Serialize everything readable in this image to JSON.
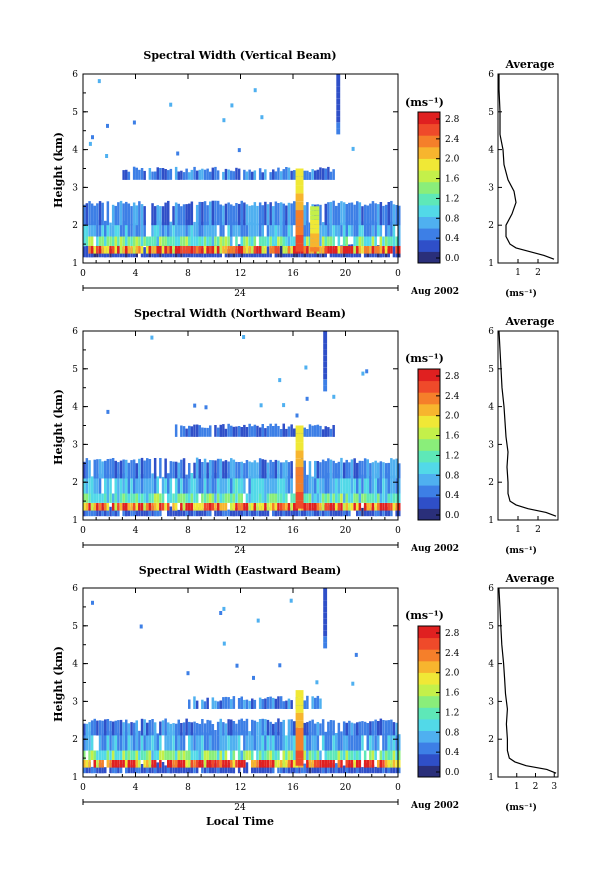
{
  "panels": [
    {
      "title": "Spectral Width (Vertical Beam)",
      "ylabel": "Height (km)",
      "date_label": "Aug 2002",
      "day_label": "24",
      "xticks": [
        "0",
        "4",
        "8",
        "12",
        "16",
        "20",
        "0"
      ],
      "yticks": [
        "1",
        "2",
        "3",
        "4",
        "5",
        "6"
      ],
      "cb_unit": "(ms⁻¹)",
      "cb_ticks": [
        "2.8",
        "2.4",
        "2.0",
        "1.6",
        "1.2",
        "0.8",
        "0.4",
        "0.0"
      ],
      "avg_title": "Average",
      "avg_xticks": [
        "1",
        "2"
      ],
      "avg_xlabel": "(ms⁻¹)"
    },
    {
      "title": "Spectral Width (Northward Beam)",
      "ylabel": "Height (km)",
      "date_label": "Aug 2002",
      "day_label": "24",
      "xticks": [
        "0",
        "4",
        "8",
        "12",
        "16",
        "20",
        "0"
      ],
      "yticks": [
        "1",
        "2",
        "3",
        "4",
        "5",
        "6"
      ],
      "cb_unit": "(ms⁻¹)",
      "cb_ticks": [
        "2.8",
        "2.4",
        "2.0",
        "1.6",
        "1.2",
        "0.8",
        "0.4",
        "0.0"
      ],
      "avg_title": "Average",
      "avg_xticks": [
        "1",
        "2"
      ],
      "avg_xlabel": "(ms⁻¹)"
    },
    {
      "title": "Spectral Width (Eastward Beam)",
      "ylabel": "Height (km)",
      "date_label": "Aug 2002",
      "day_label": "24",
      "xticks": [
        "0",
        "4",
        "8",
        "12",
        "16",
        "20",
        "0"
      ],
      "yticks": [
        "1",
        "2",
        "3",
        "4",
        "5",
        "6"
      ],
      "cb_unit": "(ms⁻¹)",
      "cb_ticks": [
        "2.8",
        "2.4",
        "2.0",
        "1.6",
        "1.2",
        "0.8",
        "0.4",
        "0.0"
      ],
      "avg_title": "Average",
      "avg_xticks": [
        "1",
        "2",
        "3"
      ],
      "avg_xlabel": "(ms⁻¹)",
      "xlabel": "Local Time"
    }
  ],
  "colors": {
    "colormap": [
      "#2a2f7a",
      "#2f4fc8",
      "#3d7fe6",
      "#4fb0f0",
      "#52d9e8",
      "#5ee8b8",
      "#8aee7a",
      "#c4f04a",
      "#f0e836",
      "#f7b52e",
      "#f57f2a",
      "#ef4a2a",
      "#e02020"
    ]
  },
  "chart_data": [
    {
      "type": "heatmap",
      "title": "Spectral Width (Vertical Beam)",
      "xlabel": "",
      "ylabel": "Height (km)",
      "xlim": [
        0,
        24
      ],
      "ylim": [
        1,
        6
      ],
      "zlim": [
        0,
        3
      ],
      "colorbar_label": "(ms⁻¹)",
      "date": "Aug 2002, day 24",
      "layers": [
        {
          "y0": 1.15,
          "y1": 1.35,
          "x0": 0,
          "x1": 24,
          "value": 0.2
        },
        {
          "y0": 1.25,
          "y1": 1.45,
          "x0": 0,
          "x1": 24,
          "value": 2.7
        },
        {
          "y0": 1.45,
          "y1": 1.7,
          "x0": 0,
          "x1": 24,
          "value": 1.3
        },
        {
          "y0": 1.7,
          "y1": 2.0,
          "x0": 0,
          "x1": 24,
          "value": 0.7
        },
        {
          "y0": 2.0,
          "y1": 2.5,
          "x0": 0,
          "x1": 24,
          "value": 0.5
        },
        {
          "y0": 3.2,
          "y1": 3.4,
          "x0": 3,
          "x1": 19,
          "value": 0.5
        }
      ],
      "features": [
        {
          "x0": 16.2,
          "x1": 16.8,
          "y0": 1.3,
          "y1": 3.5,
          "value": 2.8
        },
        {
          "x0": 17.3,
          "x1": 18.0,
          "y0": 1.3,
          "y1": 2.5,
          "value": 2.4
        },
        {
          "x0": 19.3,
          "x1": 19.6,
          "y0": 4.4,
          "y1": 6.0,
          "value": 0.4
        }
      ],
      "average_profile": {
        "xlim": [
          0,
          3
        ],
        "height": [
          1.1,
          1.2,
          1.3,
          1.4,
          1.5,
          1.7,
          2.0,
          2.3,
          2.6,
          2.9,
          3.2,
          3.6,
          4.0,
          4.4,
          5.0,
          5.6,
          6.0
        ],
        "width": [
          2.8,
          2.3,
          1.6,
          0.9,
          0.6,
          0.4,
          0.4,
          0.7,
          0.9,
          0.8,
          0.5,
          0.3,
          0.25,
          0.1,
          0.1,
          0.05,
          0.05
        ]
      }
    },
    {
      "type": "heatmap",
      "title": "Spectral Width (Northward Beam)",
      "xlabel": "",
      "ylabel": "Height (km)",
      "xlim": [
        0,
        24
      ],
      "ylim": [
        1,
        6
      ],
      "zlim": [
        0,
        3
      ],
      "colorbar_label": "(ms⁻¹)",
      "date": "Aug 2002, day 24",
      "layers": [
        {
          "y0": 1.1,
          "y1": 1.25,
          "x0": 0,
          "x1": 24,
          "value": 0.3
        },
        {
          "y0": 1.25,
          "y1": 1.45,
          "x0": 0,
          "x1": 24,
          "value": 2.6
        },
        {
          "y0": 1.45,
          "y1": 1.7,
          "x0": 0,
          "x1": 24,
          "value": 1.2
        },
        {
          "y0": 1.7,
          "y1": 2.1,
          "x0": 0,
          "x1": 24,
          "value": 0.8
        },
        {
          "y0": 2.1,
          "y1": 2.5,
          "x0": 0,
          "x1": 24,
          "value": 0.5
        },
        {
          "y0": 3.2,
          "y1": 3.4,
          "x0": 7,
          "x1": 19,
          "value": 0.4
        }
      ],
      "features": [
        {
          "x0": 16.2,
          "x1": 16.8,
          "y0": 1.3,
          "y1": 3.5,
          "value": 2.8
        },
        {
          "x0": 18.3,
          "x1": 18.6,
          "y0": 4.4,
          "y1": 6.0,
          "value": 0.4
        }
      ],
      "average_profile": {
        "xlim": [
          0,
          3
        ],
        "height": [
          1.1,
          1.2,
          1.3,
          1.4,
          1.5,
          1.7,
          2.0,
          2.4,
          2.8,
          3.2,
          3.6,
          4.0,
          4.5,
          5.0,
          5.5,
          6.0
        ],
        "width": [
          2.9,
          2.4,
          1.5,
          0.9,
          0.6,
          0.5,
          0.5,
          0.45,
          0.5,
          0.4,
          0.35,
          0.3,
          0.2,
          0.15,
          0.1,
          0.05
        ]
      }
    },
    {
      "type": "heatmap",
      "title": "Spectral Width (Eastward Beam)",
      "xlabel": "Local Time",
      "ylabel": "Height (km)",
      "xlim": [
        0,
        24
      ],
      "ylim": [
        1,
        6
      ],
      "zlim": [
        0,
        3
      ],
      "colorbar_label": "(ms⁻¹)",
      "date": "Aug 2002, day 24",
      "layers": [
        {
          "y0": 1.1,
          "y1": 1.25,
          "x0": 0,
          "x1": 24,
          "value": 0.3
        },
        {
          "y0": 1.25,
          "y1": 1.45,
          "x0": 0,
          "x1": 24,
          "value": 2.7
        },
        {
          "y0": 1.45,
          "y1": 1.7,
          "x0": 0,
          "x1": 24,
          "value": 1.3
        },
        {
          "y0": 1.7,
          "y1": 2.1,
          "x0": 0,
          "x1": 24,
          "value": 0.7
        },
        {
          "y0": 2.1,
          "y1": 2.4,
          "x0": 0,
          "x1": 24,
          "value": 0.5
        },
        {
          "y0": 2.8,
          "y1": 3.0,
          "x0": 8,
          "x1": 18,
          "value": 0.5
        }
      ],
      "features": [
        {
          "x0": 16.2,
          "x1": 16.8,
          "y0": 1.3,
          "y1": 3.3,
          "value": 2.8
        },
        {
          "x0": 18.3,
          "x1": 18.6,
          "y0": 4.4,
          "y1": 6.0,
          "value": 0.4
        }
      ],
      "average_profile": {
        "xlim": [
          0,
          3.2
        ],
        "height": [
          1.1,
          1.2,
          1.3,
          1.4,
          1.5,
          1.7,
          2.0,
          2.4,
          2.8,
          3.2,
          3.6,
          4.0,
          4.5,
          5.0,
          5.5,
          6.0
        ],
        "width": [
          3.1,
          2.6,
          1.5,
          0.9,
          0.6,
          0.5,
          0.5,
          0.45,
          0.5,
          0.4,
          0.35,
          0.3,
          0.2,
          0.15,
          0.1,
          0.05
        ]
      }
    }
  ]
}
